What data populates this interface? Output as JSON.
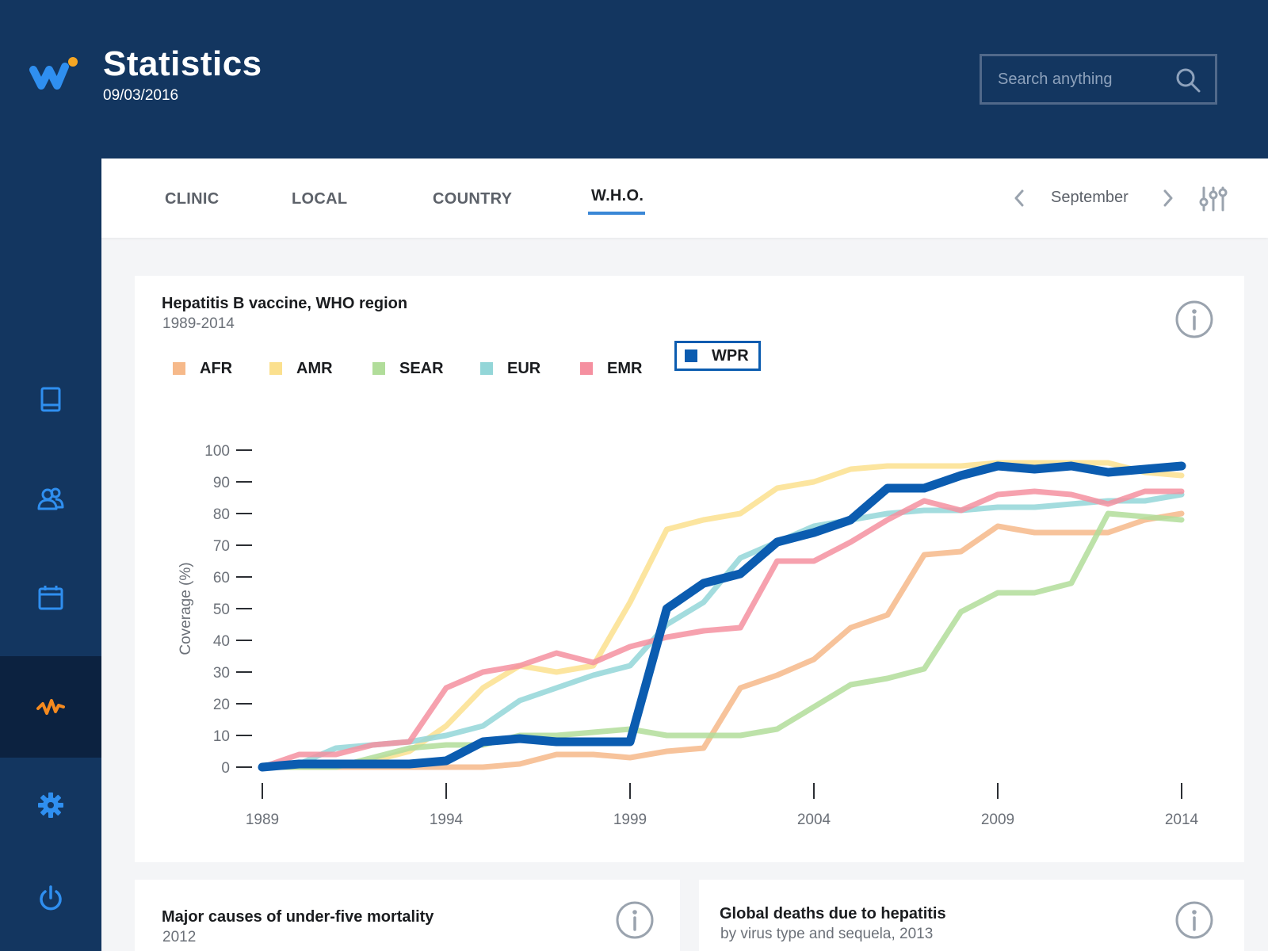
{
  "header": {
    "title": "Statistics",
    "date": "09/03/2016",
    "search_placeholder": "Search anything",
    "logo_colors": [
      "#2f8ff0",
      "#f5a623"
    ]
  },
  "sidebar": {
    "items": [
      {
        "name": "book-icon",
        "active": false
      },
      {
        "name": "users-icon",
        "active": false
      },
      {
        "name": "calendar-icon",
        "active": false
      },
      {
        "name": "activity-icon",
        "active": true
      },
      {
        "name": "gear-icon",
        "active": false
      },
      {
        "name": "power-icon",
        "active": false
      }
    ],
    "accent": "#2f8ff0",
    "active_accent": "#f58a1f"
  },
  "tabs": {
    "items": [
      {
        "label": "CLINIC",
        "active": false
      },
      {
        "label": "LOCAL",
        "active": false
      },
      {
        "label": "COUNTRY",
        "active": false
      },
      {
        "label": "W.H.O.",
        "active": true
      }
    ],
    "month": "September"
  },
  "main_chart": {
    "title": "Hepatitis B vaccine, WHO region",
    "subtitle": "1989-2014",
    "legend": [
      {
        "label": "AFR",
        "color": "#f6b98a",
        "selected": false
      },
      {
        "label": "AMR",
        "color": "#fbe08e",
        "selected": false
      },
      {
        "label": "SEAR",
        "color": "#b1dd9a",
        "selected": false
      },
      {
        "label": "EUR",
        "color": "#93d6d8",
        "selected": false
      },
      {
        "label": "EMR",
        "color": "#f590a0",
        "selected": false
      },
      {
        "label": "WPR",
        "color": "#0b5cb0",
        "selected": true
      }
    ]
  },
  "chart_data": {
    "type": "line",
    "title": "Hepatitis B vaccine, WHO region",
    "subtitle": "1989-2014",
    "xlabel": "",
    "ylabel": "Coverage (%)",
    "xlim": [
      1989,
      2014
    ],
    "ylim": [
      0,
      100
    ],
    "x_ticks": [
      1989,
      1994,
      1999,
      2004,
      2009,
      2014
    ],
    "y_ticks": [
      0,
      10,
      20,
      30,
      40,
      50,
      60,
      70,
      80,
      90,
      100
    ],
    "legend_position": "top-left",
    "grid": false,
    "x": [
      1989,
      1990,
      1991,
      1992,
      1993,
      1994,
      1995,
      1996,
      1997,
      1998,
      1999,
      2000,
      2001,
      2002,
      2003,
      2004,
      2005,
      2006,
      2007,
      2008,
      2009,
      2010,
      2011,
      2012,
      2013,
      2014
    ],
    "series": [
      {
        "name": "AFR",
        "color": "#f6b98a",
        "values": [
          0,
          0,
          0,
          0,
          0,
          0,
          0,
          1,
          4,
          4,
          3,
          5,
          6,
          25,
          29,
          34,
          44,
          48,
          67,
          68,
          76,
          74,
          74,
          74,
          78,
          80
        ]
      },
      {
        "name": "AMR",
        "color": "#fbe08e",
        "values": [
          0,
          0,
          1,
          2,
          5,
          13,
          25,
          32,
          30,
          32,
          52,
          75,
          78,
          80,
          88,
          90,
          94,
          95,
          95,
          95,
          96,
          96,
          96,
          96,
          93,
          92
        ]
      },
      {
        "name": "SEAR",
        "color": "#b1dd9a",
        "values": [
          0,
          0,
          0,
          3,
          6,
          7,
          7,
          10,
          10,
          11,
          12,
          10,
          10,
          10,
          12,
          19,
          26,
          28,
          31,
          49,
          55,
          55,
          58,
          80,
          79,
          78
        ]
      },
      {
        "name": "EUR",
        "color": "#93d6d8",
        "values": [
          0,
          1,
          6,
          7,
          8,
          10,
          13,
          21,
          25,
          29,
          32,
          45,
          52,
          66,
          71,
          76,
          78,
          80,
          81,
          81,
          82,
          82,
          83,
          84,
          84,
          86
        ]
      },
      {
        "name": "EMR",
        "color": "#f590a0",
        "values": [
          0,
          4,
          4,
          7,
          8,
          25,
          30,
          32,
          36,
          33,
          38,
          41,
          43,
          44,
          65,
          65,
          71,
          78,
          84,
          81,
          86,
          87,
          86,
          83,
          87,
          87
        ]
      },
      {
        "name": "WPR",
        "color": "#0b5cb0",
        "values": [
          0,
          1,
          1,
          1,
          1,
          2,
          8,
          9,
          8,
          8,
          8,
          50,
          58,
          61,
          71,
          74,
          78,
          88,
          88,
          92,
          95,
          94,
          95,
          93,
          94,
          95
        ]
      }
    ]
  },
  "card2": {
    "title": "Major causes of under-five mortality",
    "subtitle": "2012"
  },
  "card3": {
    "title": "Global deaths due to hepatitis",
    "subtitle": "by virus type and sequela, 2013"
  }
}
